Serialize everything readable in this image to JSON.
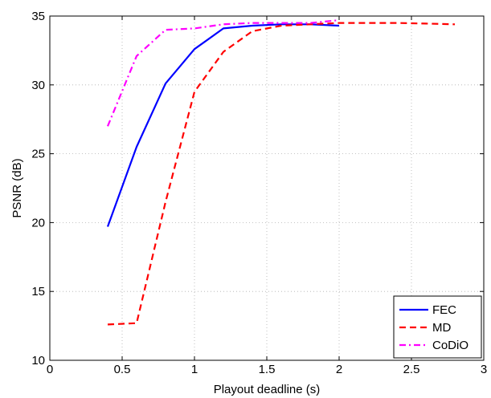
{
  "chart_data": {
    "type": "line",
    "xlabel": "Playout deadline (s)",
    "ylabel": "PSNR (dB)",
    "xlim": [
      0,
      3
    ],
    "ylim": [
      10,
      35
    ],
    "xticks": [
      0,
      0.5,
      1,
      1.5,
      2,
      2.5,
      3
    ],
    "xtick_labels": [
      "0",
      "0.5",
      "1",
      "1.5",
      "2",
      "2.5",
      "3"
    ],
    "yticks": [
      10,
      15,
      20,
      25,
      30,
      35
    ],
    "ytick_labels": [
      "10",
      "15",
      "20",
      "25",
      "30",
      "35"
    ],
    "grid": true,
    "legend_position": "bottom-right",
    "series": [
      {
        "name": "FEC",
        "color": "#0000ff",
        "dash": "solid",
        "x": [
          0.4,
          0.6,
          0.8,
          1.0,
          1.2,
          1.4,
          1.6,
          1.8,
          2.0
        ],
        "y": [
          19.7,
          25.5,
          30.1,
          32.6,
          34.1,
          34.3,
          34.4,
          34.4,
          34.3
        ]
      },
      {
        "name": "MD",
        "color": "#ff0000",
        "dash": "dashed",
        "x": [
          0.4,
          0.6,
          0.8,
          1.0,
          1.2,
          1.4,
          1.6,
          1.8,
          2.0,
          2.2,
          2.4,
          2.6,
          2.8
        ],
        "y": [
          12.6,
          12.7,
          21.5,
          29.5,
          32.4,
          33.9,
          34.3,
          34.4,
          34.5,
          34.5,
          34.5,
          34.45,
          34.4
        ]
      },
      {
        "name": "CoDiO",
        "color": "#ff00ff",
        "dash": "dashdot",
        "x": [
          0.4,
          0.6,
          0.8,
          1.0,
          1.2,
          1.4,
          1.6,
          1.8,
          2.0
        ],
        "y": [
          27.0,
          32.1,
          34.0,
          34.1,
          34.4,
          34.5,
          34.5,
          34.5,
          34.7
        ]
      }
    ]
  }
}
